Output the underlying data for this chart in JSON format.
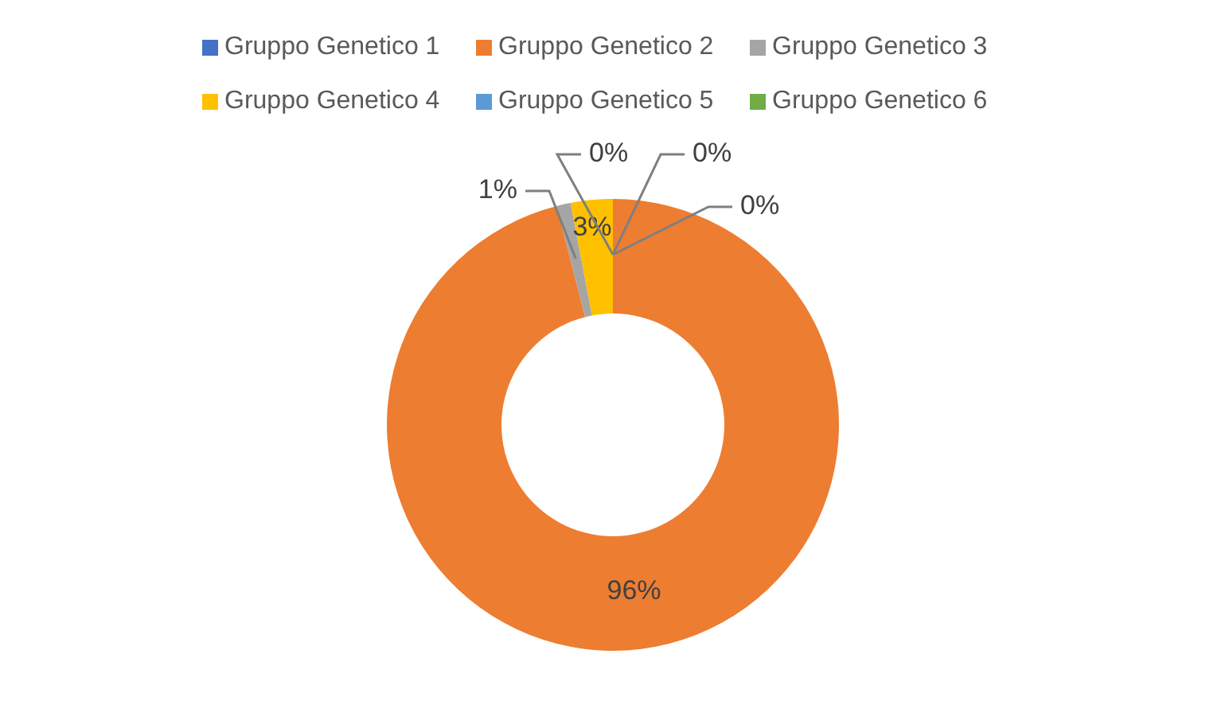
{
  "chart_data": {
    "type": "donut",
    "categories": [
      "Gruppo Genetico 1",
      "Gruppo Genetico 2",
      "Gruppo Genetico 3",
      "Gruppo Genetico 4",
      "Gruppo Genetico 5",
      "Gruppo Genetico 6"
    ],
    "values": [
      0,
      96,
      1,
      3,
      0,
      0
    ],
    "colors": [
      "#4472c4",
      "#ed7d31",
      "#a5a5a5",
      "#ffc000",
      "#5b9bd5",
      "#70ad47"
    ],
    "value_labels": [
      "0%",
      "96%",
      "1%",
      "3%",
      "0%",
      "0%"
    ],
    "legend": "top"
  }
}
